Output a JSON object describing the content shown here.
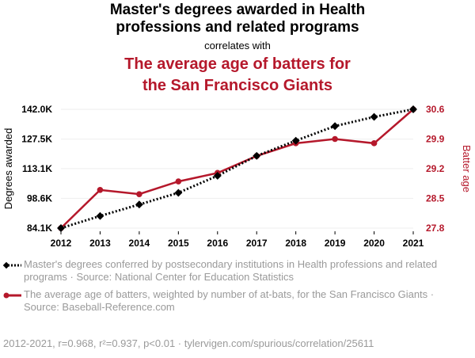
{
  "header": {
    "title_line1": "Master's degrees awarded in Health",
    "title_line2": "professions and related programs",
    "correlates": "correlates with",
    "title2_line1": "The average age of batters for",
    "title2_line2": "the San Francisco Giants"
  },
  "colors": {
    "series1": "#000000",
    "series2": "#b5182b",
    "muted": "#9a9a9a"
  },
  "chart_data": {
    "type": "line",
    "x": [
      2012,
      2013,
      2014,
      2015,
      2016,
      2017,
      2018,
      2019,
      2020,
      2021
    ],
    "x_tick_labels": [
      "2012",
      "2013",
      "2014",
      "2015",
      "2016",
      "2017",
      "2018",
      "2019",
      "2020",
      "2021"
    ],
    "series": [
      {
        "name": "Master's degrees awarded",
        "axis": "left",
        "style": "dotted-black-diamond",
        "values": [
          84100,
          90000,
          95600,
          101300,
          109600,
          119300,
          126700,
          133800,
          138300,
          142000
        ]
      },
      {
        "name": "Batter age",
        "axis": "right",
        "style": "solid-red-circle",
        "values": [
          27.8,
          28.7,
          28.6,
          28.9,
          29.1,
          29.5,
          29.8,
          29.9,
          29.8,
          30.6
        ]
      }
    ],
    "y_left": {
      "label": "Degrees awarded",
      "ticks": [
        "142.0K",
        "127.5K",
        "113.1K",
        "98.6K",
        "84.1K"
      ],
      "tick_values": [
        142000,
        127500,
        113100,
        98600,
        84100
      ],
      "range": [
        84100,
        142000
      ]
    },
    "y_right": {
      "label": "Batter age",
      "ticks": [
        "30.6",
        "29.9",
        "29.2",
        "28.5",
        "27.8"
      ],
      "tick_values": [
        30.6,
        29.9,
        29.2,
        28.5,
        27.8
      ],
      "range": [
        27.8,
        30.6
      ]
    }
  },
  "legend": {
    "item1": "Master's degrees conferred by postsecondary institutions in Health professions and related programs · Source: National Center for Education Statistics",
    "item2": "The average age of batters, weighted by number of at-bats, for the San Francisco Giants · Source: Baseball-Reference.com"
  },
  "footer": "2012-2021, r=0.968, r²=0.937, p<0.01 · tylervigen.com/spurious/correlation/25611"
}
